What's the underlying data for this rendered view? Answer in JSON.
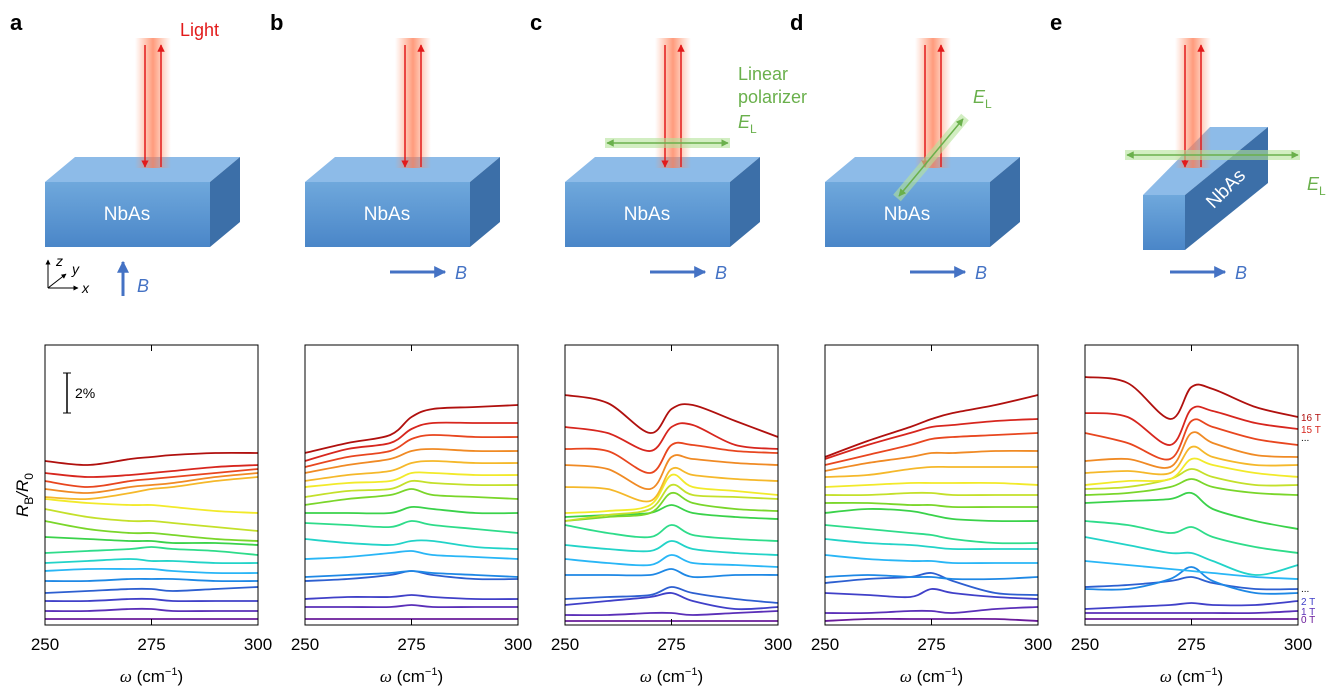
{
  "series_colors": [
    "#6a1b9a",
    "#5a2fb8",
    "#4040c8",
    "#2d5fd0",
    "#1e88e5",
    "#29b6f6",
    "#22d3c8",
    "#2edc8a",
    "#3ad24a",
    "#7ad62a",
    "#c4e02a",
    "#f2ea2a",
    "#f5b82a",
    "#f08a24",
    "#e8461f",
    "#d7261e",
    "#b0100e"
  ],
  "schematics": [
    {
      "letter": "a",
      "sample": "NbAs",
      "light": "Light",
      "field": "B",
      "axes": [
        "z",
        "y",
        "x"
      ]
    },
    {
      "letter": "b",
      "sample": "NbAs",
      "field": "B"
    },
    {
      "letter": "c",
      "sample": "NbAs",
      "field": "B",
      "polarizer": [
        "Linear",
        "polarizer"
      ],
      "E": "E",
      "E_sub": "L"
    },
    {
      "letter": "d",
      "sample": "NbAs",
      "field": "B",
      "E": "E",
      "E_sub": "L"
    },
    {
      "letter": "e",
      "sample": "NbAs",
      "field": "B",
      "E": "E",
      "E_sub": "L"
    }
  ],
  "ylabel": {
    "main": "R",
    "sub": "B",
    "slash": "/R",
    "sub2": "0"
  },
  "chart_data": [
    {
      "type": "line",
      "x": [
        250,
        260,
        270,
        275,
        280,
        290,
        300
      ],
      "xlim": [
        250,
        300
      ],
      "xticks": [
        250,
        275,
        300
      ],
      "ylim": [
        0,
        14
      ],
      "xlabel": {
        "symbol": "ω",
        "text": " (cm",
        "sup": "−1",
        "close": ")"
      },
      "scale_bar": {
        "value": 2,
        "label": "2%"
      },
      "series": [
        {
          "values": [
            0.3,
            0.3,
            0.3,
            0.3,
            0.3,
            0.3,
            0.3
          ]
        },
        {
          "values": [
            0.7,
            0.7,
            0.8,
            0.8,
            0.7,
            0.7,
            0.7
          ]
        },
        {
          "values": [
            1.2,
            1.2,
            1.3,
            1.3,
            1.2,
            1.2,
            1.2
          ]
        },
        {
          "values": [
            1.6,
            1.7,
            1.8,
            1.8,
            1.7,
            1.8,
            1.9
          ]
        },
        {
          "values": [
            2.2,
            2.2,
            2.3,
            2.3,
            2.3,
            2.2,
            2.2
          ]
        },
        {
          "values": [
            2.7,
            2.8,
            2.8,
            2.8,
            2.7,
            2.6,
            2.6
          ]
        },
        {
          "values": [
            3.1,
            3.2,
            3.3,
            3.2,
            3.2,
            3.1,
            3.1
          ]
        },
        {
          "values": [
            3.6,
            3.7,
            3.8,
            3.9,
            3.8,
            3.7,
            3.5
          ]
        },
        {
          "values": [
            4.4,
            4.3,
            4.2,
            4.2,
            4.1,
            4.1,
            4.0
          ]
        },
        {
          "values": [
            5.2,
            4.8,
            4.6,
            4.6,
            4.5,
            4.3,
            4.2
          ]
        },
        {
          "values": [
            5.8,
            5.4,
            5.2,
            5.2,
            5.1,
            4.9,
            4.7
          ]
        },
        {
          "values": [
            6.3,
            6.1,
            6.0,
            6.0,
            5.9,
            5.7,
            5.6
          ]
        },
        {
          "values": [
            6.4,
            6.3,
            6.6,
            6.8,
            6.9,
            7.2,
            7.4
          ]
        },
        {
          "values": [
            6.8,
            6.6,
            6.9,
            7.0,
            7.1,
            7.4,
            7.6
          ]
        },
        {
          "values": [
            7.2,
            6.9,
            7.2,
            7.3,
            7.4,
            7.6,
            7.8
          ]
        },
        {
          "values": [
            7.6,
            7.4,
            7.5,
            7.6,
            7.7,
            7.9,
            8.0
          ]
        },
        {
          "values": [
            8.2,
            8.0,
            8.3,
            8.4,
            8.5,
            8.6,
            8.6
          ]
        }
      ]
    },
    {
      "type": "line",
      "x": [
        250,
        260,
        270,
        275,
        280,
        290,
        300
      ],
      "xlim": [
        250,
        300
      ],
      "xticks": [
        250,
        275,
        300
      ],
      "ylim": [
        0,
        14
      ],
      "xlabel": {
        "symbol": "ω",
        "text": " (cm",
        "sup": "−1",
        "close": ")"
      },
      "series": [
        {
          "values": [
            0.3,
            0.3,
            0.3,
            0.3,
            0.3,
            0.3,
            0.3
          ]
        },
        {
          "values": [
            0.9,
            0.9,
            0.9,
            1.0,
            0.9,
            0.9,
            0.9
          ]
        },
        {
          "values": [
            1.3,
            1.4,
            1.4,
            1.5,
            1.4,
            1.3,
            1.3
          ]
        },
        {
          "values": [
            2.2,
            2.3,
            2.5,
            2.7,
            2.5,
            2.3,
            2.3
          ]
        },
        {
          "values": [
            2.4,
            2.5,
            2.6,
            2.7,
            2.6,
            2.5,
            2.4
          ]
        },
        {
          "values": [
            3.3,
            3.4,
            3.6,
            3.7,
            3.5,
            3.4,
            3.3
          ]
        },
        {
          "values": [
            4.3,
            4.1,
            4.0,
            4.2,
            4.2,
            3.9,
            3.8
          ]
        },
        {
          "values": [
            5.1,
            5.0,
            4.9,
            5.2,
            5.0,
            4.8,
            4.6
          ]
        },
        {
          "values": [
            5.6,
            5.6,
            5.6,
            5.9,
            5.8,
            5.6,
            5.6
          ]
        },
        {
          "values": [
            6.0,
            6.3,
            6.5,
            6.8,
            6.5,
            6.4,
            6.3
          ]
        },
        {
          "values": [
            6.4,
            6.7,
            6.8,
            7.2,
            7.1,
            7.0,
            7.0
          ]
        },
        {
          "values": [
            6.9,
            7.1,
            7.2,
            7.6,
            7.6,
            7.5,
            7.5
          ]
        },
        {
          "values": [
            7.2,
            7.5,
            7.7,
            8.1,
            8.2,
            8.1,
            8.1
          ]
        },
        {
          "values": [
            7.6,
            8.0,
            8.3,
            8.7,
            8.8,
            8.7,
            8.7
          ]
        },
        {
          "values": [
            7.9,
            8.4,
            8.7,
            9.3,
            9.5,
            9.4,
            9.4
          ]
        },
        {
          "values": [
            8.2,
            8.8,
            9.1,
            9.8,
            10.1,
            10.1,
            10.1
          ]
        },
        {
          "values": [
            8.6,
            9.1,
            9.5,
            10.4,
            10.8,
            10.9,
            11.0
          ]
        }
      ]
    },
    {
      "type": "line",
      "x": [
        250,
        260,
        270,
        275,
        280,
        290,
        300
      ],
      "xlim": [
        250,
        300
      ],
      "xticks": [
        250,
        275,
        300
      ],
      "ylim": [
        0,
        14
      ],
      "xlabel": {
        "symbol": "ω",
        "text": " (cm",
        "sup": "−1",
        "close": ")"
      },
      "series": [
        {
          "values": [
            0.2,
            0.2,
            0.2,
            0.2,
            0.2,
            0.2,
            0.2
          ]
        },
        {
          "values": [
            0.5,
            0.5,
            0.6,
            0.6,
            0.5,
            0.6,
            0.7
          ]
        },
        {
          "values": [
            1.0,
            1.2,
            1.4,
            1.6,
            1.2,
            0.8,
            0.9
          ]
        },
        {
          "values": [
            1.3,
            1.4,
            1.5,
            1.9,
            1.6,
            1.3,
            1.1
          ]
        },
        {
          "values": [
            2.5,
            2.5,
            2.5,
            2.8,
            2.4,
            2.5,
            2.5
          ]
        },
        {
          "values": [
            3.3,
            3.1,
            3.0,
            3.5,
            3.1,
            3.0,
            2.9
          ]
        },
        {
          "values": [
            4.0,
            3.8,
            3.7,
            4.2,
            3.8,
            3.6,
            3.5
          ]
        },
        {
          "values": [
            5.0,
            4.6,
            4.4,
            5.0,
            4.5,
            4.3,
            4.2
          ]
        },
        {
          "values": [
            5.4,
            5.5,
            5.6,
            6.0,
            5.6,
            5.4,
            5.3
          ]
        },
        {
          "values": [
            5.2,
            5.4,
            5.6,
            6.6,
            6.1,
            5.8,
            5.7
          ]
        },
        {
          "values": [
            5.2,
            5.5,
            5.8,
            7.0,
            6.5,
            6.4,
            6.3
          ]
        },
        {
          "values": [
            5.6,
            5.7,
            6.0,
            7.5,
            6.9,
            6.7,
            6.5
          ]
        },
        {
          "values": [
            6.9,
            6.8,
            6.2,
            7.8,
            7.5,
            7.3,
            7.2
          ]
        },
        {
          "values": [
            8.0,
            7.8,
            6.8,
            8.4,
            8.3,
            8.1,
            8.0
          ]
        },
        {
          "values": [
            8.8,
            8.7,
            7.6,
            9.0,
            9.0,
            8.7,
            8.6
          ]
        },
        {
          "values": [
            9.9,
            9.6,
            8.7,
            9.9,
            10.0,
            9.0,
            8.8
          ]
        },
        {
          "values": [
            11.5,
            11.1,
            9.6,
            10.8,
            11.0,
            10.2,
            9.4
          ]
        }
      ]
    },
    {
      "type": "line",
      "x": [
        250,
        260,
        270,
        275,
        280,
        290,
        300
      ],
      "xlim": [
        250,
        300
      ],
      "xticks": [
        250,
        275,
        300
      ],
      "ylim": [
        0,
        14
      ],
      "xlabel": {
        "symbol": "ω",
        "text": " (cm",
        "sup": "−1",
        "close": ")"
      },
      "series": [
        {
          "values": [
            0.2,
            0.3,
            0.3,
            0.3,
            0.3,
            0.3,
            0.2
          ]
        },
        {
          "values": [
            0.6,
            0.6,
            0.7,
            0.7,
            0.6,
            0.8,
            0.9
          ]
        },
        {
          "values": [
            1.6,
            1.5,
            1.4,
            1.8,
            1.6,
            1.4,
            1.3
          ]
        },
        {
          "values": [
            2.1,
            2.3,
            2.4,
            2.6,
            2.2,
            1.6,
            1.5
          ]
        },
        {
          "values": [
            2.4,
            2.5,
            2.4,
            2.4,
            2.3,
            2.3,
            2.4
          ]
        },
        {
          "values": [
            3.5,
            3.3,
            3.2,
            3.2,
            3.1,
            3.1,
            3.1
          ]
        },
        {
          "values": [
            4.3,
            4.1,
            4.0,
            3.9,
            3.8,
            3.8,
            3.8
          ]
        },
        {
          "values": [
            5.0,
            4.8,
            4.6,
            4.5,
            4.3,
            4.1,
            4.1
          ]
        },
        {
          "values": [
            5.6,
            5.8,
            5.7,
            5.5,
            5.3,
            5.2,
            5.2
          ]
        },
        {
          "values": [
            6.1,
            6.1,
            6.0,
            6.0,
            5.9,
            5.9,
            5.9
          ]
        },
        {
          "values": [
            6.5,
            6.5,
            6.6,
            6.6,
            6.5,
            6.5,
            6.5
          ]
        },
        {
          "values": [
            6.9,
            7.0,
            7.1,
            7.1,
            7.1,
            7.1,
            7.0
          ]
        },
        {
          "values": [
            7.4,
            7.5,
            7.8,
            7.9,
            7.9,
            7.9,
            7.9
          ]
        },
        {
          "values": [
            7.7,
            8.1,
            8.4,
            8.6,
            8.6,
            8.7,
            8.7
          ]
        },
        {
          "values": [
            8.0,
            8.5,
            9.0,
            9.3,
            9.4,
            9.5,
            9.6
          ]
        },
        {
          "values": [
            8.3,
            9.0,
            9.6,
            9.9,
            10.0,
            10.2,
            10.3
          ]
        },
        {
          "values": [
            8.4,
            9.2,
            9.9,
            10.3,
            10.6,
            11.0,
            11.5
          ]
        }
      ]
    },
    {
      "type": "line",
      "x": [
        250,
        260,
        270,
        275,
        280,
        290,
        300
      ],
      "xlim": [
        250,
        300
      ],
      "xticks": [
        250,
        275,
        300
      ],
      "ylim": [
        0,
        14
      ],
      "xlabel": {
        "symbol": "ω",
        "text": " (cm",
        "sup": "−1",
        "close": ")"
      },
      "ellipses": [
        "...",
        "..."
      ],
      "series": [
        {
          "name": "0 T",
          "values": [
            0.3,
            0.3,
            0.3,
            0.3,
            0.3,
            0.3,
            0.3
          ]
        },
        {
          "name": "1 T",
          "values": [
            0.6,
            0.6,
            0.6,
            0.6,
            0.6,
            0.6,
            0.7
          ]
        },
        {
          "name": "2 T",
          "values": [
            0.8,
            0.9,
            1.0,
            1.1,
            1.0,
            1.0,
            1.2
          ]
        },
        {
          "values": [
            1.9,
            2.0,
            2.2,
            2.4,
            2.1,
            1.8,
            1.8
          ]
        },
        {
          "values": [
            1.8,
            1.8,
            2.3,
            2.9,
            2.2,
            1.6,
            1.6
          ]
        },
        {
          "values": [
            3.2,
            3.0,
            2.8,
            2.7,
            2.6,
            2.4,
            2.3
          ]
        },
        {
          "values": [
            4.4,
            4.0,
            3.6,
            3.6,
            3.2,
            2.5,
            3.0
          ]
        },
        {
          "values": [
            5.2,
            5.0,
            4.6,
            4.9,
            4.4,
            3.9,
            3.6
          ]
        },
        {
          "values": [
            6.1,
            6.2,
            6.3,
            6.6,
            5.8,
            5.2,
            4.8
          ]
        },
        {
          "values": [
            6.5,
            6.6,
            6.9,
            7.3,
            6.9,
            6.6,
            6.5
          ]
        },
        {
          "values": [
            6.8,
            6.9,
            7.3,
            7.8,
            7.4,
            7.0,
            7.0
          ]
        },
        {
          "values": [
            7.0,
            7.2,
            7.3,
            8.3,
            8.0,
            7.6,
            7.4
          ]
        },
        {
          "values": [
            7.6,
            7.7,
            7.6,
            8.9,
            8.4,
            8.0,
            8.0
          ]
        },
        {
          "values": [
            8.2,
            8.3,
            7.9,
            9.6,
            9.1,
            8.5,
            8.4
          ]
        },
        {
          "values": [
            9.6,
            9.1,
            8.3,
            10.2,
            9.9,
            9.3,
            9.0
          ]
        },
        {
          "name": "15 T",
          "values": [
            10.6,
            10.4,
            9.0,
            10.8,
            10.7,
            10.1,
            9.8
          ]
        },
        {
          "name": "16 T",
          "values": [
            12.4,
            12.1,
            10.3,
            11.9,
            11.8,
            10.9,
            10.4
          ]
        }
      ]
    }
  ]
}
